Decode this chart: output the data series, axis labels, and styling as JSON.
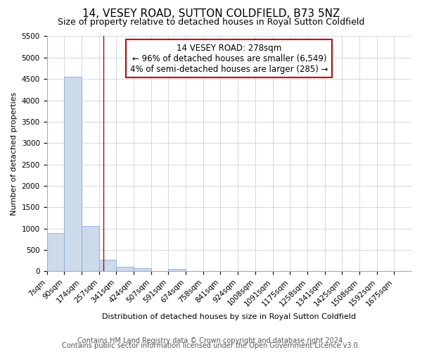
{
  "title": "14, VESEY ROAD, SUTTON COLDFIELD, B73 5NZ",
  "subtitle": "Size of property relative to detached houses in Royal Sutton Coldfield",
  "xlabel": "Distribution of detached houses by size in Royal Sutton Coldfield",
  "ylabel": "Number of detached properties",
  "bar_color": "#ccdaea",
  "bar_edge_color": "#8aabe0",
  "categories": [
    "7sqm",
    "90sqm",
    "174sqm",
    "257sqm",
    "341sqm",
    "424sqm",
    "507sqm",
    "591sqm",
    "674sqm",
    "758sqm",
    "841sqm",
    "924sqm",
    "1008sqm",
    "1091sqm",
    "1175sqm",
    "1258sqm",
    "1341sqm",
    "1425sqm",
    "1508sqm",
    "1592sqm",
    "1675sqm"
  ],
  "bar_values": [
    900,
    4550,
    1060,
    275,
    100,
    65,
    0,
    50,
    0,
    0,
    0,
    0,
    0,
    0,
    0,
    0,
    0,
    0,
    0,
    0,
    0
  ],
  "property_line_x": 278,
  "bin_edges": [
    7,
    90,
    174,
    257,
    341,
    424,
    507,
    591,
    674,
    758,
    841,
    924,
    1008,
    1091,
    1175,
    1258,
    1341,
    1425,
    1508,
    1592,
    1675,
    1758
  ],
  "ylim": [
    0,
    5500
  ],
  "yticks": [
    0,
    500,
    1000,
    1500,
    2000,
    2500,
    3000,
    3500,
    4000,
    4500,
    5000,
    5500
  ],
  "annotation_line1": "14 VESEY ROAD: 278sqm",
  "annotation_line2": "← 96% of detached houses are smaller (6,549)",
  "annotation_line3": "4% of semi-detached houses are larger (285) →",
  "footer_line1": "Contains HM Land Registry data © Crown copyright and database right 2024.",
  "footer_line2": "Contains public sector information licensed under the Open Government Licence v3.0.",
  "background_color": "#ffffff",
  "grid_color": "#c0ccd8",
  "line_color": "#cc0000",
  "annotation_box_color": "#cc0000",
  "title_fontsize": 11,
  "subtitle_fontsize": 9,
  "axis_label_fontsize": 8,
  "tick_fontsize": 7.5,
  "annotation_fontsize": 8.5,
  "footer_fontsize": 7
}
